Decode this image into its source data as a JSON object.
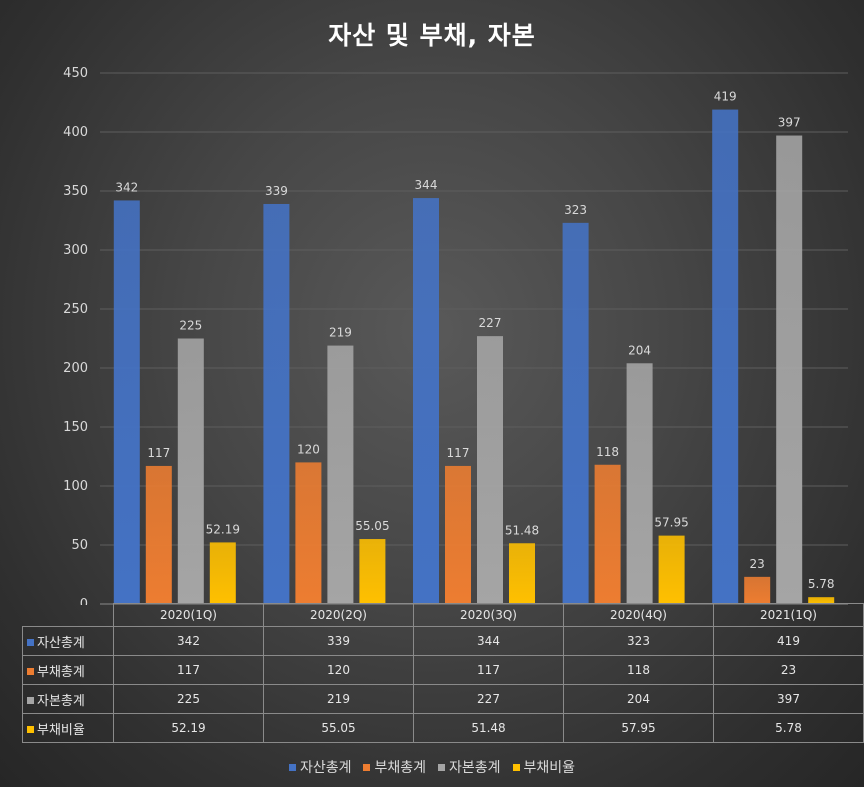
{
  "chart_data": {
    "type": "bar",
    "title": "자산 및 부채, 자본",
    "categories": [
      "2020(1Q)",
      "2020(2Q)",
      "2020(3Q)",
      "2020(4Q)",
      "2021(1Q)"
    ],
    "series": [
      {
        "name": "자산총계",
        "color": "#4472C4",
        "values": [
          342,
          339,
          344,
          323,
          419
        ],
        "labels": [
          "342",
          "339",
          "344",
          "323",
          "419"
        ]
      },
      {
        "name": "부채총계",
        "color": "#ED7D31",
        "values": [
          117,
          120,
          117,
          118,
          23
        ],
        "labels": [
          "117",
          "120",
          "117",
          "118",
          "23"
        ]
      },
      {
        "name": "자본총계",
        "color": "#A5A5A5",
        "values": [
          225,
          219,
          227,
          204,
          397
        ],
        "labels": [
          "225",
          "219",
          "227",
          "204",
          "397"
        ]
      },
      {
        "name": "부채비율",
        "color": "#FFC000",
        "values": [
          52.19,
          55.05,
          51.48,
          57.95,
          5.78
        ],
        "labels": [
          "52.19",
          "55.05",
          "51.48",
          "57.95",
          "5.78"
        ]
      }
    ],
    "ylim": [
      0,
      450
    ],
    "yticks": [
      0,
      50,
      100,
      150,
      200,
      250,
      300,
      350,
      400,
      450
    ],
    "grid": true,
    "legend": "bottom",
    "data_table": true
  }
}
